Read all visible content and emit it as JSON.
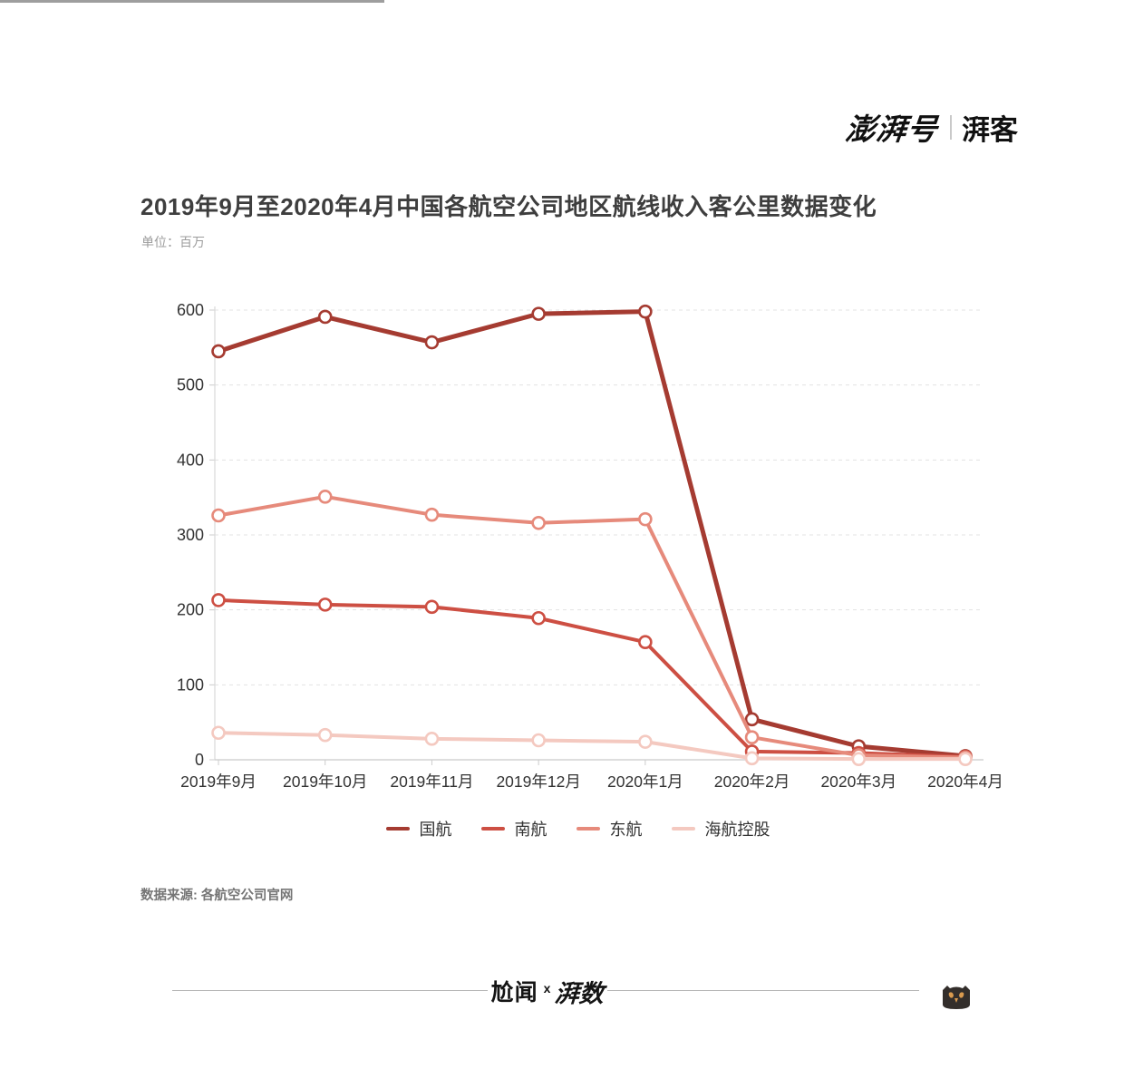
{
  "brand": {
    "pengpai": "澎湃号",
    "paike": "湃客"
  },
  "title": "2019年9月至2020年4月中国各航空公司地区航线收入客公里数据变化",
  "unit_note": "单位：百万",
  "source_note": "数据来源: 各航空公司官网",
  "footer": {
    "logo_word1": "尬闻",
    "logo_x": "x",
    "logo_word2": "湃数",
    "owl_icon": "owl-icon"
  },
  "colors": {
    "axis": "#cccccc",
    "grid": "#e3e3e3",
    "tick_text": "#333333",
    "title_text": "#3e3e3e",
    "owl_body": "#332e2b",
    "owl_eyes": "#d99a4e"
  },
  "chart_data": {
    "type": "line",
    "title": "2019年9月至2020年4月中国各航空公司地区航线收入客公里数据变化",
    "unit": "百万",
    "categories": [
      "2019年9月",
      "2019年10月",
      "2019年11月",
      "2019年12月",
      "2020年1月",
      "2020年2月",
      "2020年3月",
      "2020年4月"
    ],
    "series": [
      {
        "name": "国航",
        "color": "#a53b31",
        "line_width": 5,
        "values": [
          545,
          591,
          557,
          595,
          598,
          54,
          18,
          5
        ]
      },
      {
        "name": "南航",
        "color": "#cd4f43",
        "line_width": 4,
        "values": [
          213,
          207,
          204,
          189,
          157,
          11,
          9,
          4
        ]
      },
      {
        "name": "东航",
        "color": "#e68a7b",
        "line_width": 4,
        "values": [
          326,
          351,
          327,
          316,
          321,
          30,
          6,
          3
        ]
      },
      {
        "name": "海航控股",
        "color": "#f4c9c0",
        "line_width": 4,
        "values": [
          36,
          33,
          28,
          26,
          24,
          2,
          1,
          1
        ]
      }
    ],
    "xlabel": "",
    "ylabel": "",
    "ylim": [
      0,
      600
    ],
    "yticks": [
      0,
      100,
      200,
      300,
      400,
      500,
      600
    ],
    "grid": "horizontal-dashed",
    "legend_position": "bottom",
    "marker": "open-circle"
  }
}
